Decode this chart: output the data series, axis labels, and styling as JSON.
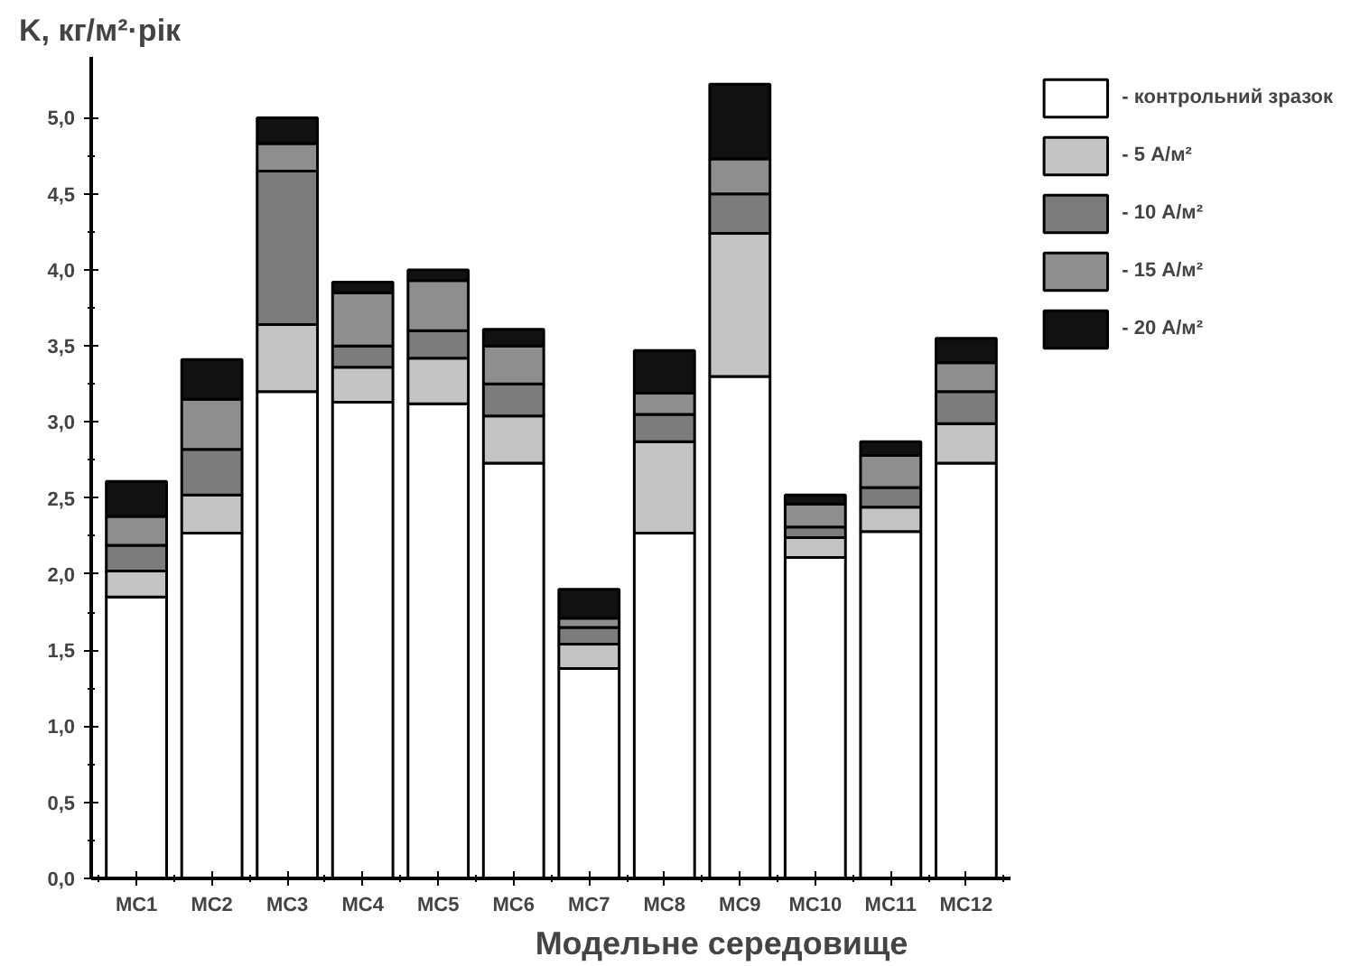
{
  "chart_data": {
    "type": "bar",
    "stacked": true,
    "ylabel": "K, кг/м²·рік",
    "xlabel": "Модельне середовище",
    "categories": [
      "МС1",
      "МС2",
      "МС3",
      "МС4",
      "МС5",
      "МС6",
      "МС7",
      "МС8",
      "МС9",
      "МС10",
      "МС11",
      "МС12"
    ],
    "series": [
      {
        "name": "- контрольний зразок",
        "color": "#ffffff",
        "values": [
          1.85,
          2.27,
          3.2,
          3.13,
          3.12,
          2.73,
          1.38,
          2.27,
          3.3,
          2.11,
          2.28,
          2.73
        ]
      },
      {
        "name": "- 5 А/м²",
        "color": "#c4c4c4",
        "values": [
          0.17,
          0.25,
          0.44,
          0.23,
          0.3,
          0.31,
          0.16,
          0.6,
          0.94,
          0.13,
          0.16,
          0.26
        ]
      },
      {
        "name": "- 10 А/м²",
        "color": "#7c7c7c",
        "values": [
          0.17,
          0.3,
          1.01,
          0.14,
          0.18,
          0.21,
          0.11,
          0.18,
          0.26,
          0.07,
          0.13,
          0.21
        ]
      },
      {
        "name": "- 15 А/м²",
        "color": "#8e8e8e",
        "values": [
          0.19,
          0.33,
          0.18,
          0.35,
          0.33,
          0.25,
          0.06,
          0.14,
          0.23,
          0.15,
          0.21,
          0.19
        ]
      },
      {
        "name": "- 20 А/м²",
        "color": "#111111",
        "values": [
          0.23,
          0.26,
          0.17,
          0.07,
          0.07,
          0.11,
          0.19,
          0.28,
          0.49,
          0.06,
          0.09,
          0.16
        ]
      }
    ],
    "ylim": [
      0,
      5.4
    ],
    "yticks": [
      {
        "value": 0,
        "label": "0,0"
      },
      {
        "value": 0.5,
        "label": "0,5"
      },
      {
        "value": 1,
        "label": "1,0"
      },
      {
        "value": 1.5,
        "label": "1,5"
      },
      {
        "value": 2,
        "label": "2,0"
      },
      {
        "value": 2.5,
        "label": "2,5"
      },
      {
        "value": 3,
        "label": "3,0"
      },
      {
        "value": 3.5,
        "label": "3,5"
      },
      {
        "value": 4,
        "label": "4,0"
      },
      {
        "value": 4.5,
        "label": "4,5"
      },
      {
        "value": 5,
        "label": "5,0"
      }
    ],
    "grid": false,
    "legend": "top right"
  }
}
